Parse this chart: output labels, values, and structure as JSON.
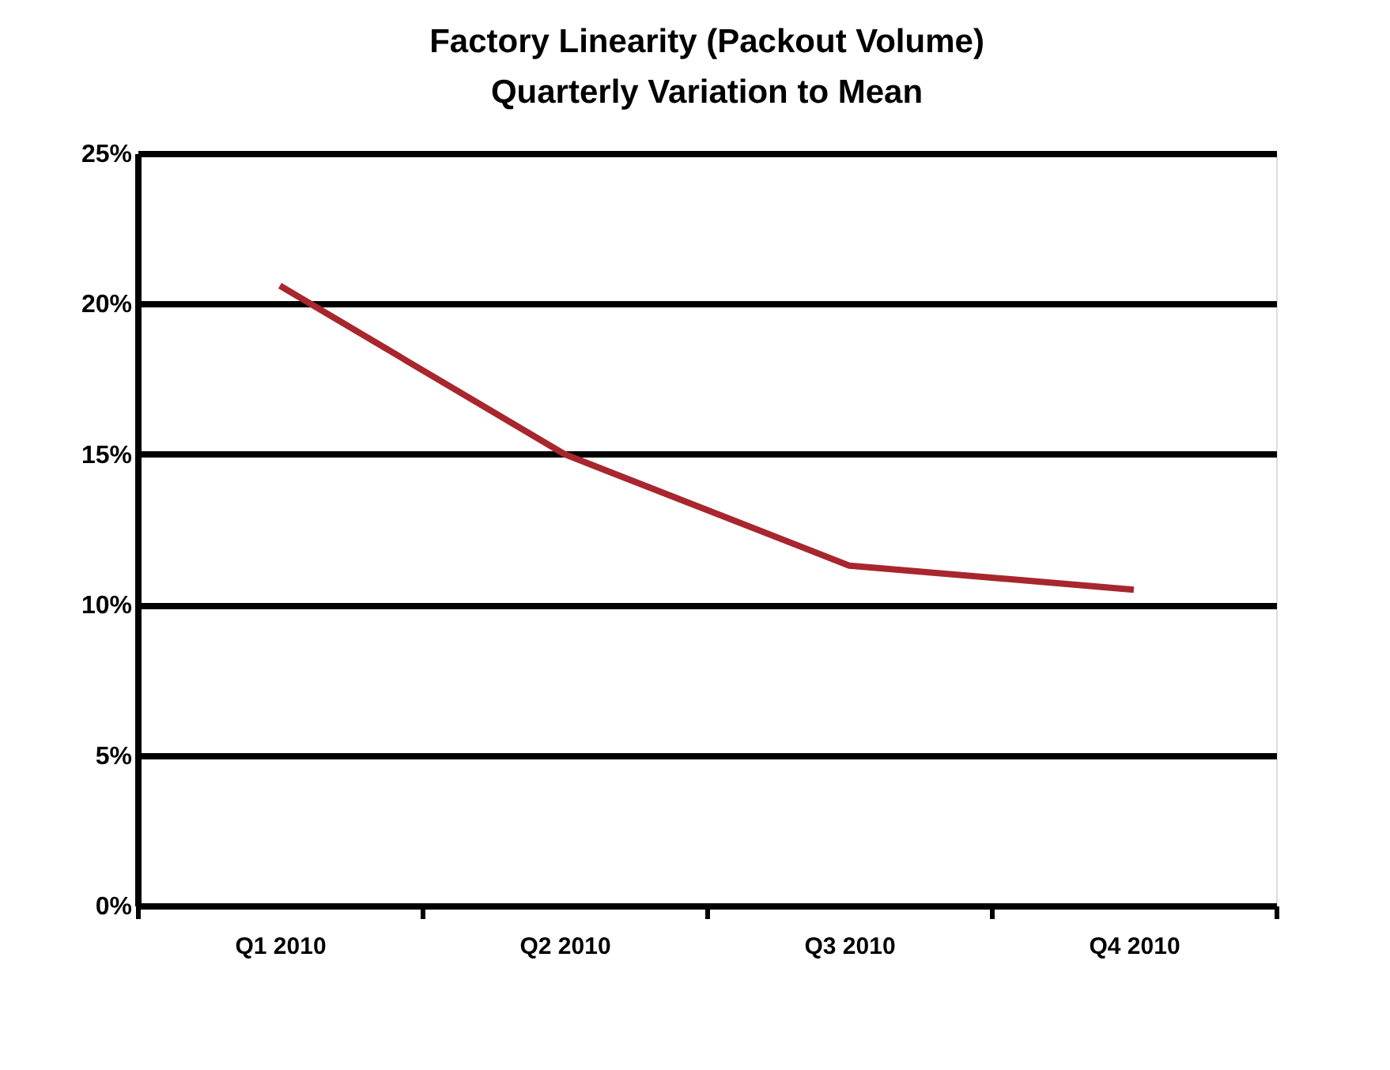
{
  "chart_data": {
    "type": "line",
    "title": [
      "Factory Linearity (Packout Volume)",
      "Quarterly Variation to Mean"
    ],
    "categories": [
      "Q1 2010",
      "Q2 2010",
      "Q3 2010",
      "Q4 2010"
    ],
    "series": [
      {
        "color": "#a8262e",
        "values": [
          20.6,
          15.0,
          11.3,
          10.5
        ]
      }
    ],
    "ylim": [
      0,
      25
    ],
    "yticks": [
      {
        "value": 0,
        "label": "0%"
      },
      {
        "value": 5,
        "label": "5%"
      },
      {
        "value": 10,
        "label": "10%"
      },
      {
        "value": 15,
        "label": "15%"
      },
      {
        "value": 20,
        "label": "20%"
      },
      {
        "value": 25,
        "label": "25%"
      }
    ],
    "grid": "y",
    "marker": "none",
    "line_style": "solid"
  }
}
